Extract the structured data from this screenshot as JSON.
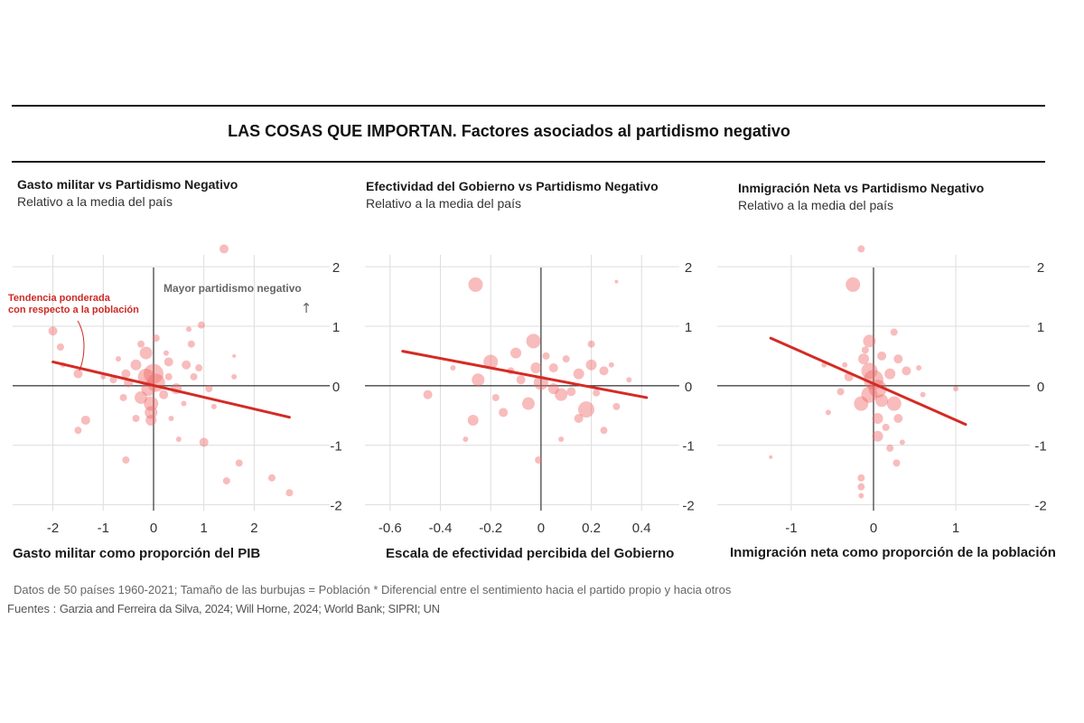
{
  "title": "LAS COSAS QUE IMPORTAN. Factores asociados al partidismo negativo",
  "chart_data": [
    {
      "type": "scatter",
      "title": "Gasto militar vs Partidismo Negativo",
      "subtitle": "Relativo a la media del país",
      "xlabel": "Gasto militar como proporción del PIB",
      "ylabel": "",
      "xlim": [
        -2.8,
        3.5
      ],
      "ylim": [
        -2.1,
        2.2
      ],
      "xticks": [
        -2,
        -1,
        0,
        1,
        2
      ],
      "xtick_labels": [
        "-2",
        "-1",
        "0",
        "1",
        "2"
      ],
      "yticks": [
        2,
        1,
        0,
        -1,
        -2
      ],
      "ytick_labels": [
        "2",
        "1",
        "0",
        "-1",
        "-2"
      ],
      "grid": true,
      "annotations": [
        {
          "text": "Tendencia ponderada",
          "x": -2.2,
          "y": 1.55
        },
        {
          "text": "con respecto a la población",
          "x": -2.2,
          "y": 1.35
        },
        {
          "text": "Mayor partidismo negativo",
          "x": 0.1,
          "y": 1.7
        },
        {
          "text": "↑",
          "x": 2.8,
          "y": 1.4
        }
      ],
      "trend": {
        "x": [
          -2.0,
          2.7
        ],
        "y": [
          0.4,
          -0.53
        ]
      },
      "points": [
        {
          "x": 1.4,
          "y": 2.3,
          "s": 5
        },
        {
          "x": -2.0,
          "y": 0.92,
          "s": 5
        },
        {
          "x": -1.85,
          "y": 0.65,
          "s": 4
        },
        {
          "x": -1.5,
          "y": 0.2,
          "s": 5
        },
        {
          "x": -1.8,
          "y": 0.35,
          "s": 3
        },
        {
          "x": -1.35,
          "y": -0.58,
          "s": 5
        },
        {
          "x": -1.5,
          "y": -0.75,
          "s": 4
        },
        {
          "x": -0.55,
          "y": -1.25,
          "s": 4
        },
        {
          "x": -0.25,
          "y": 0.7,
          "s": 4
        },
        {
          "x": -0.15,
          "y": 0.55,
          "s": 7
        },
        {
          "x": 0.05,
          "y": 0.8,
          "s": 4
        },
        {
          "x": 0.7,
          "y": 0.95,
          "s": 3
        },
        {
          "x": 0.95,
          "y": 1.02,
          "s": 4
        },
        {
          "x": 0.75,
          "y": 0.7,
          "s": 4
        },
        {
          "x": 0.3,
          "y": 0.4,
          "s": 5
        },
        {
          "x": 0.65,
          "y": 0.35,
          "s": 5
        },
        {
          "x": 0.9,
          "y": 0.3,
          "s": 4
        },
        {
          "x": -0.35,
          "y": 0.35,
          "s": 6
        },
        {
          "x": -0.55,
          "y": 0.2,
          "s": 5
        },
        {
          "x": -0.15,
          "y": 0.15,
          "s": 9
        },
        {
          "x": 0.0,
          "y": 0.2,
          "s": 11
        },
        {
          "x": 0.05,
          "y": 0.05,
          "s": 10
        },
        {
          "x": -0.1,
          "y": -0.05,
          "s": 8
        },
        {
          "x": -0.25,
          "y": -0.2,
          "s": 7
        },
        {
          "x": -0.05,
          "y": -0.3,
          "s": 8
        },
        {
          "x": -0.05,
          "y": -0.45,
          "s": 7
        },
        {
          "x": -0.05,
          "y": -0.58,
          "s": 6
        },
        {
          "x": 0.2,
          "y": -0.15,
          "s": 5
        },
        {
          "x": 0.45,
          "y": -0.05,
          "s": 6
        },
        {
          "x": 0.8,
          "y": 0.15,
          "s": 4
        },
        {
          "x": 1.1,
          "y": -0.05,
          "s": 4
        },
        {
          "x": 1.2,
          "y": -0.35,
          "s": 3
        },
        {
          "x": 0.35,
          "y": -0.55,
          "s": 3
        },
        {
          "x": 0.5,
          "y": -0.9,
          "s": 3
        },
        {
          "x": 1.0,
          "y": -0.95,
          "s": 5
        },
        {
          "x": 1.45,
          "y": -1.6,
          "s": 4
        },
        {
          "x": 1.7,
          "y": -1.3,
          "s": 4
        },
        {
          "x": 2.35,
          "y": -1.55,
          "s": 4
        },
        {
          "x": 2.7,
          "y": -1.8,
          "s": 4
        },
        {
          "x": -0.5,
          "y": 0.05,
          "s": 5
        },
        {
          "x": -0.8,
          "y": 0.1,
          "s": 4
        },
        {
          "x": -0.6,
          "y": -0.2,
          "s": 4
        },
        {
          "x": 0.3,
          "y": 0.15,
          "s": 4
        },
        {
          "x": 0.6,
          "y": -0.3,
          "s": 3
        },
        {
          "x": -0.35,
          "y": -0.55,
          "s": 4
        },
        {
          "x": -1.0,
          "y": 0.15,
          "s": 3
        },
        {
          "x": 1.6,
          "y": 0.15,
          "s": 3
        },
        {
          "x": 1.6,
          "y": 0.5,
          "s": 2
        },
        {
          "x": 0.25,
          "y": 0.55,
          "s": 3
        },
        {
          "x": -0.7,
          "y": 0.45,
          "s": 3
        }
      ]
    },
    {
      "type": "scatter",
      "title": "Efectividad del Gobierno vs Partidismo Negativo",
      "subtitle": "Relativo a la media del país",
      "xlabel": "Escala de efectividad percibida del Gobierno",
      "ylabel": "",
      "xlim": [
        -0.7,
        0.55
      ],
      "ylim": [
        -2.1,
        2.2
      ],
      "xticks": [
        -0.6,
        -0.4,
        -0.2,
        0,
        0.2,
        0.4
      ],
      "xtick_labels": [
        "-0.6",
        "-0.4",
        "-0.2",
        "0",
        "0.2",
        "0.4"
      ],
      "yticks": [
        2,
        1,
        0,
        -1,
        -2
      ],
      "ytick_labels": [
        "2",
        "1",
        "0",
        "-1",
        "-2"
      ],
      "grid": true,
      "trend": {
        "x": [
          -0.55,
          0.42
        ],
        "y": [
          0.58,
          -0.2
        ]
      },
      "points": [
        {
          "x": -0.26,
          "y": 1.7,
          "s": 8
        },
        {
          "x": -0.03,
          "y": 0.75,
          "s": 8
        },
        {
          "x": -0.1,
          "y": 0.55,
          "s": 6
        },
        {
          "x": -0.2,
          "y": 0.4,
          "s": 8
        },
        {
          "x": -0.25,
          "y": 0.1,
          "s": 7
        },
        {
          "x": -0.02,
          "y": 0.3,
          "s": 6
        },
        {
          "x": 0.05,
          "y": 0.3,
          "s": 5
        },
        {
          "x": 0.15,
          "y": 0.2,
          "s": 6
        },
        {
          "x": 0.2,
          "y": 0.35,
          "s": 6
        },
        {
          "x": 0.25,
          "y": 0.25,
          "s": 5
        },
        {
          "x": 0.2,
          "y": 0.7,
          "s": 4
        },
        {
          "x": 0.0,
          "y": 0.05,
          "s": 8
        },
        {
          "x": 0.05,
          "y": -0.05,
          "s": 6
        },
        {
          "x": 0.12,
          "y": -0.1,
          "s": 5
        },
        {
          "x": -0.05,
          "y": -0.3,
          "s": 7
        },
        {
          "x": -0.15,
          "y": -0.45,
          "s": 5
        },
        {
          "x": -0.27,
          "y": -0.58,
          "s": 6
        },
        {
          "x": -0.45,
          "y": -0.15,
          "s": 5
        },
        {
          "x": 0.18,
          "y": -0.4,
          "s": 9
        },
        {
          "x": 0.22,
          "y": -0.12,
          "s": 4
        },
        {
          "x": 0.15,
          "y": -0.55,
          "s": 5
        },
        {
          "x": 0.25,
          "y": -0.75,
          "s": 4
        },
        {
          "x": 0.3,
          "y": -0.35,
          "s": 4
        },
        {
          "x": 0.08,
          "y": -0.15,
          "s": 7
        },
        {
          "x": -0.08,
          "y": 0.1,
          "s": 5
        },
        {
          "x": -0.12,
          "y": 0.25,
          "s": 4
        },
        {
          "x": 0.3,
          "y": 1.75,
          "s": 2
        },
        {
          "x": -0.01,
          "y": -1.25,
          "s": 4
        },
        {
          "x": -0.3,
          "y": -0.9,
          "s": 3
        },
        {
          "x": 0.08,
          "y": -0.9,
          "s": 3
        },
        {
          "x": 0.35,
          "y": 0.1,
          "s": 3
        },
        {
          "x": -0.35,
          "y": 0.3,
          "s": 3
        },
        {
          "x": 0.02,
          "y": 0.5,
          "s": 4
        },
        {
          "x": 0.1,
          "y": 0.45,
          "s": 4
        },
        {
          "x": -0.18,
          "y": -0.2,
          "s": 4
        },
        {
          "x": 0.28,
          "y": 0.35,
          "s": 3
        }
      ]
    },
    {
      "type": "scatter",
      "title": "Inmigración Neta vs Partidismo Negativo",
      "subtitle": "Relativo a la media del país",
      "xlabel": "Inmigración neta como proporción de la población",
      "ylabel": "",
      "xlim": [
        -1.9,
        1.9
      ],
      "ylim": [
        -2.1,
        2.2
      ],
      "xticks": [
        -1,
        0,
        1
      ],
      "xtick_labels": [
        "-1",
        "0",
        "1"
      ],
      "yticks": [
        2,
        1,
        0,
        -1,
        -2
      ],
      "ytick_labels": [
        "2",
        "1",
        "0",
        "-1",
        "-2"
      ],
      "grid": true,
      "trend": {
        "x": [
          -1.25,
          1.12
        ],
        "y": [
          0.8,
          -0.65
        ]
      },
      "points": [
        {
          "x": -0.15,
          "y": 2.3,
          "s": 4
        },
        {
          "x": -0.25,
          "y": 1.7,
          "s": 8
        },
        {
          "x": -0.05,
          "y": 0.75,
          "s": 7
        },
        {
          "x": -0.12,
          "y": 0.45,
          "s": 6
        },
        {
          "x": -0.05,
          "y": 0.25,
          "s": 9
        },
        {
          "x": 0.0,
          "y": 0.1,
          "s": 11
        },
        {
          "x": 0.05,
          "y": -0.05,
          "s": 10
        },
        {
          "x": -0.05,
          "y": -0.15,
          "s": 9
        },
        {
          "x": -0.15,
          "y": -0.3,
          "s": 8
        },
        {
          "x": 0.1,
          "y": -0.25,
          "s": 7
        },
        {
          "x": 0.25,
          "y": -0.3,
          "s": 8
        },
        {
          "x": 0.3,
          "y": -0.55,
          "s": 5
        },
        {
          "x": 0.05,
          "y": -0.55,
          "s": 6
        },
        {
          "x": 0.05,
          "y": -0.85,
          "s": 6
        },
        {
          "x": 0.2,
          "y": -1.05,
          "s": 4
        },
        {
          "x": 0.28,
          "y": -1.3,
          "s": 4
        },
        {
          "x": -0.15,
          "y": -1.55,
          "s": 4
        },
        {
          "x": -0.15,
          "y": -1.7,
          "s": 4
        },
        {
          "x": -0.15,
          "y": -1.85,
          "s": 3
        },
        {
          "x": 0.25,
          "y": 0.9,
          "s": 4
        },
        {
          "x": 0.3,
          "y": 0.45,
          "s": 5
        },
        {
          "x": 0.4,
          "y": 0.25,
          "s": 5
        },
        {
          "x": 0.2,
          "y": 0.2,
          "s": 6
        },
        {
          "x": -0.3,
          "y": 0.15,
          "s": 5
        },
        {
          "x": -0.4,
          "y": -0.1,
          "s": 4
        },
        {
          "x": -0.55,
          "y": -0.45,
          "s": 3
        },
        {
          "x": -0.35,
          "y": 0.35,
          "s": 3
        },
        {
          "x": 1.0,
          "y": -0.05,
          "s": 3
        },
        {
          "x": 0.6,
          "y": -0.15,
          "s": 3
        },
        {
          "x": -0.6,
          "y": 0.35,
          "s": 3
        },
        {
          "x": 0.1,
          "y": 0.5,
          "s": 5
        },
        {
          "x": -0.1,
          "y": 0.6,
          "s": 4
        },
        {
          "x": 0.15,
          "y": -0.7,
          "s": 4
        },
        {
          "x": -1.25,
          "y": -1.2,
          "s": 2
        },
        {
          "x": 0.55,
          "y": 0.3,
          "s": 3
        },
        {
          "x": 0.35,
          "y": -0.95,
          "s": 3
        }
      ]
    }
  ],
  "footer": {
    "note": "Datos de 50 países 1960-2021; Tamaño de las burbujas = Población  * Diferencial entre el sentimiento hacia el partido propio y hacia otros",
    "sources_label": "Fuentes :",
    "sources": "Garzia and Ferreira da Silva, 2024; Will Horne, 2024; World Bank; SIPRI; UN"
  },
  "colors": {
    "bubble": "#ef6b6b",
    "trend": "#d42b24",
    "annotation_red": "#cc2a24",
    "axis": "#444444",
    "grid": "#dddddd"
  }
}
